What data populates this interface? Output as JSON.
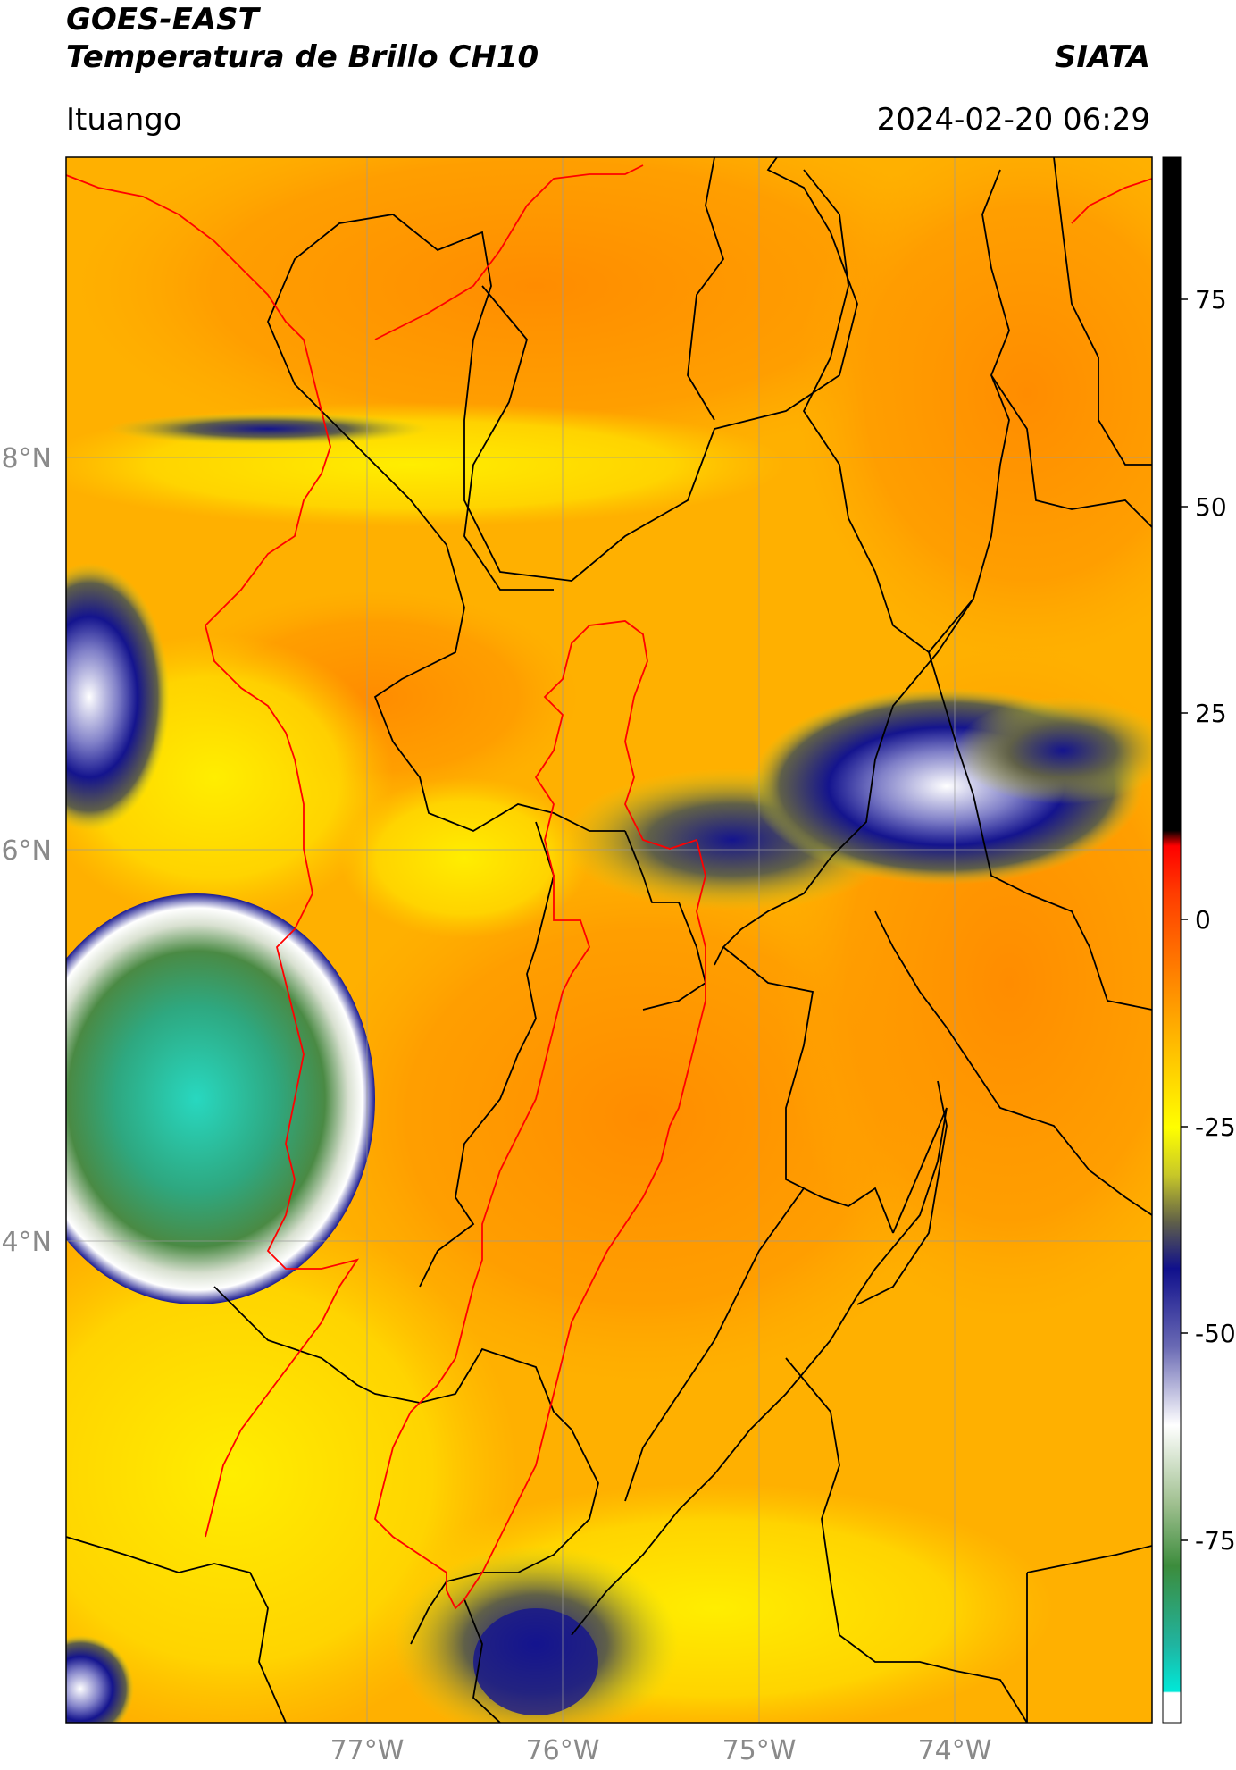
{
  "header": {
    "satellite": "GOES-EAST",
    "product": "Temperatura de Brillo CH10",
    "organization": "SIATA",
    "location": "Ituango",
    "timestamp": "2024-02-20 06:29"
  },
  "map": {
    "type": "satellite brightness temperature",
    "lat_ticks": [
      "8°N",
      "6°N",
      "4°N"
    ],
    "lon_ticks": [
      "77°W",
      "76°W",
      "75°W",
      "74°W"
    ],
    "gridlines": true
  },
  "colorbar": {
    "ticks": [
      "75",
      "50",
      "25",
      "0",
      "-25",
      "-50",
      "-75"
    ],
    "range": [
      -90,
      90
    ],
    "colors": {
      "warm_orange": "#ff8c00",
      "yellow": "#ffff00",
      "olive": "#808040",
      "dark_blue": "#10108c",
      "white": "#ffffff",
      "green": "#3c8c3c",
      "cyan": "#00e0d0",
      "red": "#ff0000",
      "black": "#000000"
    }
  }
}
